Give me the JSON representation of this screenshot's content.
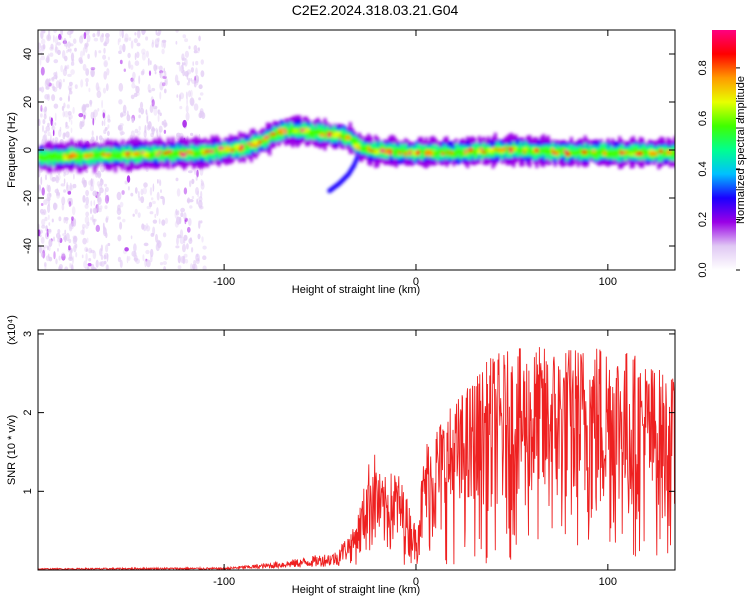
{
  "title": "C2E2.2024.318.03.21.G04",
  "chart_data": [
    {
      "type": "heatmap",
      "xlabel": "Height of straight line (km)",
      "ylabel": "Frequency (Hz)",
      "xlim": [
        -197,
        135
      ],
      "ylim": [
        -50,
        50
      ],
      "x_ticks": [
        -100,
        0,
        100
      ],
      "y_ticks": [
        -40,
        -20,
        0,
        20,
        40
      ],
      "colorbar": {
        "label": "Normalized spectral amplitude",
        "range": [
          0,
          0.95
        ],
        "ticks": [
          0,
          0.2,
          0.4,
          0.6,
          0.8
        ],
        "tick_labels": [
          "0.0",
          "0.2",
          "0.4",
          "0.6",
          "0.8"
        ],
        "colormap": [
          "#ffffff",
          "#e0c8f4",
          "#9a00e6",
          "#1a00ff",
          "#00c0ff",
          "#00ff90",
          "#40ff00",
          "#e8ff00",
          "#ff9a00",
          "#ff0000",
          "#ff0080"
        ]
      },
      "ridge_path": [
        [
          -197,
          -3
        ],
        [
          -150,
          -2
        ],
        [
          -110,
          -1
        ],
        [
          -90,
          1
        ],
        [
          -80,
          4
        ],
        [
          -70,
          8
        ],
        [
          -60,
          8
        ],
        [
          -50,
          7
        ],
        [
          -40,
          6
        ],
        [
          -35,
          5
        ],
        [
          -30,
          1
        ],
        [
          -25,
          0
        ],
        [
          -10,
          -1
        ],
        [
          0,
          -1
        ],
        [
          20,
          -1
        ],
        [
          50,
          0
        ],
        [
          80,
          -1
        ],
        [
          100,
          -1
        ],
        [
          135,
          -1
        ]
      ],
      "branch_path": [
        [
          -45,
          -17
        ],
        [
          -40,
          -14
        ],
        [
          -35,
          -10
        ],
        [
          -32,
          -6
        ],
        [
          -30,
          -2
        ]
      ]
    },
    {
      "type": "line",
      "xlabel": "Height of straight line (km)",
      "ylabel": "SNR (10 * v/v)",
      "y_multiplier": "(x10⁴)",
      "xlim": [
        -197,
        135
      ],
      "ylim": [
        0,
        3.05
      ],
      "x_ticks": [
        -100,
        0,
        100
      ],
      "y_ticks": [
        1,
        2,
        3
      ],
      "line_color": "#ee2020",
      "envelope": [
        [
          -197,
          0.02
        ],
        [
          -130,
          0.03
        ],
        [
          -100,
          0.03
        ],
        [
          -80,
          0.08
        ],
        [
          -60,
          0.15
        ],
        [
          -40,
          0.25
        ],
        [
          -32,
          0.5
        ],
        [
          -28,
          0.9
        ],
        [
          -25,
          1.3
        ],
        [
          -22,
          1.5
        ],
        [
          -18,
          1.1
        ],
        [
          -10,
          1.25
        ],
        [
          -5,
          0.9
        ],
        [
          0,
          0.5
        ],
        [
          5,
          1.6
        ],
        [
          10,
          1.8
        ],
        [
          20,
          2.1
        ],
        [
          30,
          2.4
        ],
        [
          40,
          2.7
        ],
        [
          60,
          2.8
        ],
        [
          80,
          2.8
        ],
        [
          100,
          2.9
        ],
        [
          115,
          2.7
        ],
        [
          135,
          2.4
        ]
      ]
    }
  ]
}
